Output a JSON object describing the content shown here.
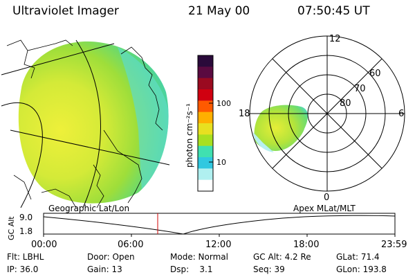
{
  "header": {
    "instrument": "Ultraviolet Imager",
    "date": "21 May 00",
    "time": "07:50:45 UT"
  },
  "colorbar": {
    "unit_label": "photon cm⁻²s⁻¹",
    "ticks": [
      "100",
      "10"
    ],
    "colors": [
      "#2a0a3a",
      "#5a0a40",
      "#9a0a20",
      "#d00010",
      "#ff5a00",
      "#ffb000",
      "#e8e020",
      "#a8e020",
      "#40e0b0",
      "#30c8e0",
      "#b0f0f0",
      "#ffffff"
    ]
  },
  "polar_plot": {
    "mlt_labels": {
      "top": "12",
      "right": "6",
      "bottom": "0",
      "left": "18"
    },
    "lat_labels": [
      "60",
      "70",
      "80"
    ]
  },
  "timeline": {
    "y_axis_label": "GC Alt",
    "y_ticks": [
      "9.0",
      "1.8"
    ],
    "left_title": "Geographic Lat/Lon",
    "right_title": "Apex MLat/MLT",
    "x_ticks": [
      "00:00",
      "06:00",
      "12:00",
      "18:00",
      "23:59"
    ],
    "marker_color": "#d00000"
  },
  "info": {
    "row1": {
      "filter": "Flt: LBHL",
      "door": "Door: Open",
      "mode": "Mode: Normal",
      "gc_alt": "GC Alt: 4.2 Re",
      "glat": "GLat: 71.4"
    },
    "row2": {
      "ip": "IP: 36.0",
      "gain": "Gain: 13",
      "dsp": "Dsp:    3.1",
      "seq": "Seq: 39",
      "glon": "GLon: 193.8"
    }
  }
}
